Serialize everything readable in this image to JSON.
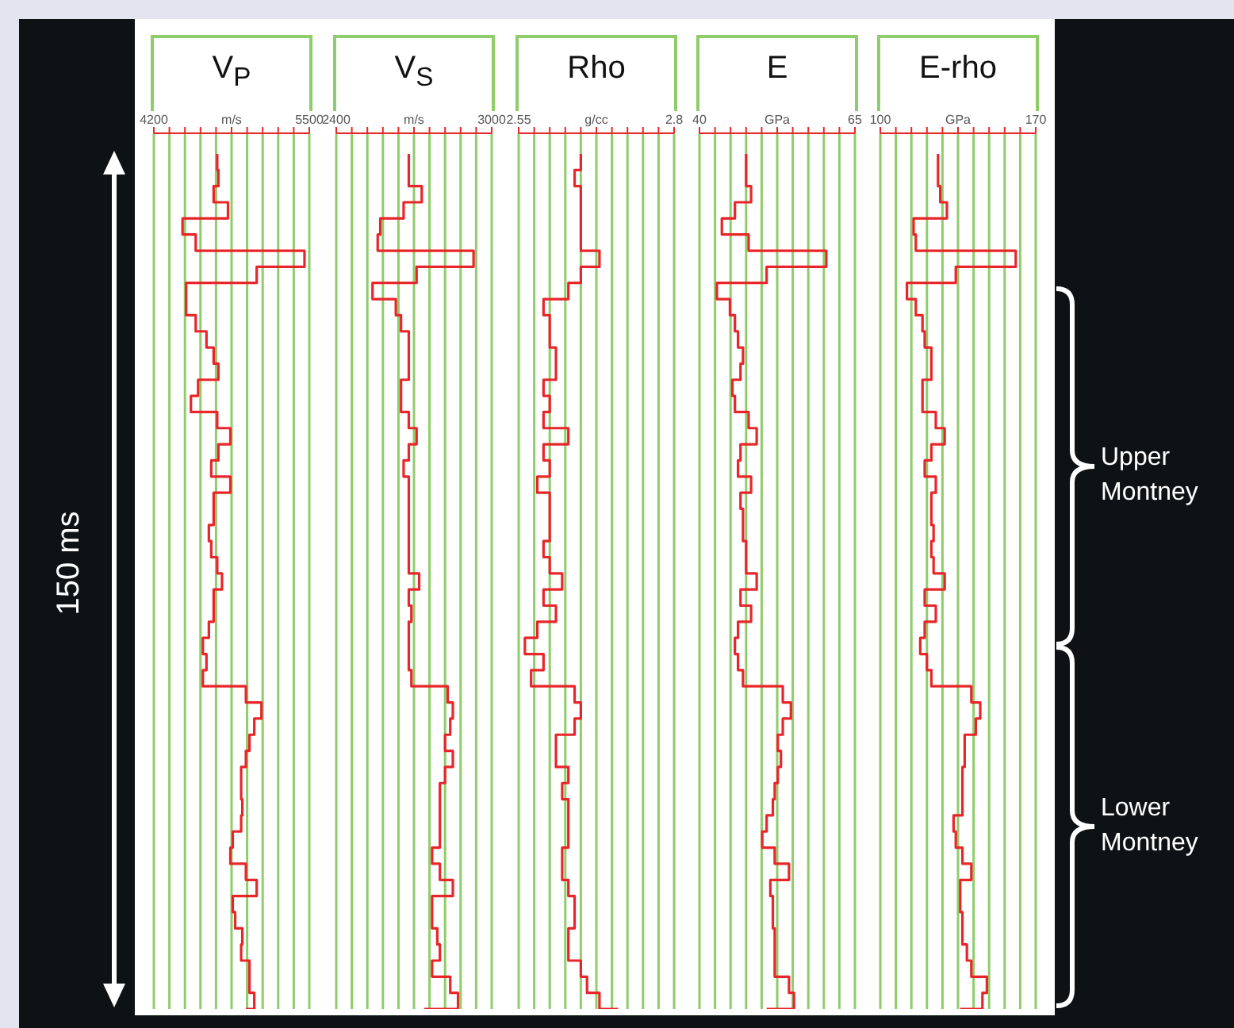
{
  "chart_data": [
    {
      "type": "step",
      "orientation": "horizontal",
      "title": "V$_{P}$",
      "color": "#e8262a",
      "grid": "x",
      "tick_labels": "x",
      "annotations": [
        "150 ms"
      ],
      "xlim": [
        4200,
        5500
      ],
      "xticks": [
        4200,
        {
          "value": 4330,
          "label": null
        },
        {
          "value": 4460,
          "label": null
        },
        {
          "value": 4590,
          "label": null
        },
        {
          "value": 4720,
          "label": null
        },
        {
          "value": 4850,
          "label": "m/s"
        },
        {
          "value": 4980,
          "label": null
        },
        {
          "value": 5110,
          "label": null
        },
        {
          "value": 5240,
          "label": null
        },
        {
          "value": 5370,
          "label": null
        },
        5500
      ],
      "categories": [
        null,
        null,
        null,
        null,
        null,
        null,
        null,
        null,
        null,
        null,
        null,
        null,
        null,
        null,
        null,
        null,
        null,
        null,
        null,
        null,
        null,
        null,
        null,
        null,
        null,
        null,
        null,
        null,
        null,
        null,
        null,
        null,
        null,
        null,
        null,
        null,
        null,
        null,
        null,
        null,
        null,
        null,
        null,
        null,
        null,
        null,
        null,
        null,
        null,
        null,
        null,
        null,
        null,
        null
      ],
      "values": [
        4730,
        4740,
        4700,
        4820,
        4440,
        4550,
        5460,
        5060,
        4470,
        4470,
        4550,
        4640,
        4700,
        4740,
        4570,
        4510,
        4730,
        4840,
        4740,
        4680,
        4840,
        4700,
        4700,
        4660,
        4680,
        4730,
        4770,
        4700,
        4700,
        4660,
        4610,
        4640,
        4610,
        4970,
        5100,
        5040,
        5000,
        4970,
        4930,
        4930,
        4940,
        4930,
        4860,
        4840,
        4970,
        5060,
        4860,
        4880,
        4940,
        4930,
        5000,
        5000,
        5040,
        4970
      ]
    },
    {
      "type": "step",
      "orientation": "horizontal",
      "title": "V$_{S}$",
      "color": "#e8262a",
      "grid": "x",
      "tick_labels": "x",
      "xlim": [
        2400,
        3000
      ],
      "xticks": [
        2400,
        {
          "value": 2460,
          "label": null
        },
        {
          "value": 2520,
          "label": null
        },
        {
          "value": 2580,
          "label": null
        },
        {
          "value": 2640,
          "label": null
        },
        {
          "value": 2700,
          "label": "m/s"
        },
        {
          "value": 2760,
          "label": null
        },
        {
          "value": 2820,
          "label": null
        },
        {
          "value": 2880,
          "label": null
        },
        {
          "value": 2940,
          "label": null
        },
        3000
      ],
      "categories": [
        null,
        null,
        null,
        null,
        null,
        null,
        null,
        null,
        null,
        null,
        null,
        null,
        null,
        null,
        null,
        null,
        null,
        null,
        null,
        null,
        null,
        null,
        null,
        null,
        null,
        null,
        null,
        null,
        null,
        null,
        null,
        null,
        null,
        null,
        null,
        null,
        null,
        null,
        null,
        null,
        null,
        null,
        null,
        null,
        null,
        null,
        null,
        null,
        null,
        null,
        null,
        null,
        null,
        null
      ],
      "values": [
        2680,
        2680,
        2730,
        2660,
        2570,
        2560,
        2930,
        2710,
        2540,
        2630,
        2650,
        2680,
        2680,
        2680,
        2650,
        2650,
        2680,
        2710,
        2680,
        2660,
        2680,
        2680,
        2680,
        2680,
        2680,
        2680,
        2720,
        2680,
        2690,
        2680,
        2680,
        2680,
        2690,
        2830,
        2850,
        2840,
        2820,
        2850,
        2820,
        2800,
        2800,
        2800,
        2800,
        2770,
        2800,
        2850,
        2770,
        2770,
        2790,
        2800,
        2770,
        2840,
        2870,
        2740
      ]
    },
    {
      "type": "step",
      "orientation": "horizontal",
      "title": "Rho",
      "color": "#e8262a",
      "grid": "x",
      "tick_labels": "x",
      "xlim": [
        2.55,
        2.8
      ],
      "xticks": [
        2.55,
        {
          "value": 2.575,
          "label": null
        },
        {
          "value": 2.6,
          "label": null
        },
        {
          "value": 2.625,
          "label": null
        },
        {
          "value": 2.65,
          "label": null
        },
        {
          "value": 2.675,
          "label": "g/cc"
        },
        {
          "value": 2.7,
          "label": null
        },
        {
          "value": 2.725,
          "label": null
        },
        {
          "value": 2.75,
          "label": null
        },
        {
          "value": 2.775,
          "label": null
        },
        2.8
      ],
      "categories": [
        null,
        null,
        null,
        null,
        null,
        null,
        null,
        null,
        null,
        null,
        null,
        null,
        null,
        null,
        null,
        null,
        null,
        null,
        null,
        null,
        null,
        null,
        null,
        null,
        null,
        null,
        null,
        null,
        null,
        null,
        null,
        null,
        null,
        null,
        null,
        null,
        null,
        null,
        null,
        null,
        null,
        null,
        null,
        null,
        null,
        null,
        null,
        null,
        null,
        null,
        null,
        null,
        null,
        null
      ],
      "values": [
        2.65,
        2.64,
        2.65,
        2.65,
        2.65,
        2.65,
        2.68,
        2.65,
        2.63,
        2.59,
        2.6,
        2.6,
        2.61,
        2.61,
        2.59,
        2.6,
        2.59,
        2.63,
        2.59,
        2.6,
        2.58,
        2.6,
        2.6,
        2.6,
        2.59,
        2.6,
        2.62,
        2.59,
        2.61,
        2.58,
        2.56,
        2.59,
        2.57,
        2.64,
        2.65,
        2.64,
        2.61,
        2.61,
        2.63,
        2.62,
        2.63,
        2.63,
        2.63,
        2.62,
        2.62,
        2.63,
        2.64,
        2.64,
        2.63,
        2.63,
        2.65,
        2.66,
        2.68,
        2.71
      ]
    },
    {
      "type": "step",
      "orientation": "horizontal",
      "title": "E",
      "color": "#e8262a",
      "grid": "x",
      "tick_labels": "x",
      "xlim": [
        40,
        65
      ],
      "xticks": [
        40,
        {
          "value": 42.5,
          "label": null
        },
        {
          "value": 45,
          "label": null
        },
        {
          "value": 47.5,
          "label": null
        },
        {
          "value": 50,
          "label": null
        },
        {
          "value": 52.5,
          "label": "GPa"
        },
        {
          "value": 55,
          "label": null
        },
        {
          "value": 57.5,
          "label": null
        },
        {
          "value": 60,
          "label": null
        },
        {
          "value": 62.5,
          "label": null
        },
        65
      ],
      "categories": [
        null,
        null,
        null,
        null,
        null,
        null,
        null,
        null,
        null,
        null,
        null,
        null,
        null,
        null,
        null,
        null,
        null,
        null,
        null,
        null,
        null,
        null,
        null,
        null,
        null,
        null,
        null,
        null,
        null,
        null,
        null,
        null,
        null,
        null,
        null,
        null,
        null,
        null,
        null,
        null,
        null,
        null,
        null,
        null,
        null,
        null,
        null,
        null,
        null,
        null,
        null,
        null,
        null,
        null
      ],
      "values": [
        47.5,
        47.5,
        48.3,
        45.7,
        43.6,
        47.9,
        60.4,
        50.8,
        42.8,
        44.9,
        45.7,
        46.2,
        47.0,
        46.6,
        45.3,
        45.7,
        47.9,
        49.2,
        46.6,
        46.2,
        48.3,
        46.6,
        47.0,
        47.0,
        47.5,
        47.5,
        49.2,
        46.6,
        48.3,
        46.2,
        45.7,
        46.2,
        47.0,
        53.4,
        54.7,
        53.4,
        52.6,
        53.1,
        52.6,
        52.1,
        51.8,
        50.8,
        50.1,
        52.1,
        54.4,
        51.4,
        51.8,
        51.8,
        52.1,
        52.1,
        52.1,
        54.4,
        55.2,
        50.8
      ]
    },
    {
      "type": "step",
      "orientation": "horizontal",
      "title": "E-rho",
      "color": "#e8262a",
      "grid": "x",
      "tick_labels": "x",
      "annotations": [
        "Upper Montney",
        "Lower Montney"
      ],
      "xlim": [
        100,
        170
      ],
      "xticks": [
        100,
        {
          "value": 107,
          "label": null
        },
        {
          "value": 114,
          "label": null
        },
        {
          "value": 121,
          "label": null
        },
        {
          "value": 128,
          "label": null
        },
        {
          "value": 135,
          "label": "GPa"
        },
        {
          "value": 142,
          "label": null
        },
        {
          "value": 149,
          "label": null
        },
        {
          "value": 156,
          "label": null
        },
        {
          "value": 163,
          "label": null
        },
        170
      ],
      "categories": [
        null,
        null,
        null,
        null,
        null,
        null,
        null,
        null,
        null,
        null,
        null,
        null,
        null,
        null,
        null,
        null,
        null,
        null,
        null,
        null,
        null,
        null,
        null,
        null,
        null,
        null,
        null,
        null,
        null,
        null,
        null,
        null,
        null,
        null,
        null,
        null,
        null,
        null,
        null,
        null,
        null,
        null,
        null,
        null,
        null,
        null,
        null,
        null,
        null,
        null,
        null,
        null,
        null,
        null
      ],
      "values": [
        126,
        126,
        127,
        130,
        115,
        116,
        161,
        134,
        112,
        116,
        119,
        120,
        123,
        123,
        119,
        119,
        125,
        129,
        123,
        120,
        125,
        123,
        123,
        124,
        123,
        124,
        129,
        120,
        125,
        120,
        118,
        121,
        123,
        141,
        145,
        143,
        138,
        138,
        137,
        137,
        137,
        133,
        134,
        137,
        141,
        136,
        136,
        137,
        137,
        139,
        141,
        148,
        146,
        136
      ]
    }
  ]
}
